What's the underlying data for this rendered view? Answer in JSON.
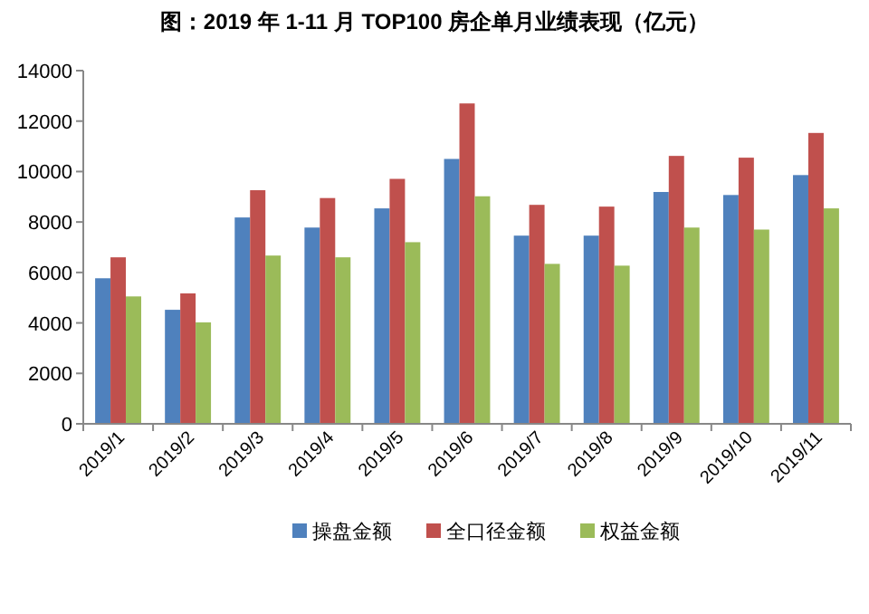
{
  "chart_data": {
    "type": "bar",
    "title": "图：2019 年 1-11 月 TOP100 房企单月业绩表现（亿元）",
    "categories": [
      "2019/1",
      "2019/2",
      "2019/3",
      "2019/4",
      "2019/5",
      "2019/6",
      "2019/7",
      "2019/8",
      "2019/9",
      "2019/10",
      "2019/11"
    ],
    "series": [
      {
        "name": "操盘金额",
        "color": "#4f81bd",
        "values": [
          5770,
          4520,
          8180,
          7780,
          8540,
          10500,
          7460,
          7460,
          9190,
          9070,
          9860
        ]
      },
      {
        "name": "全口径金额",
        "color": "#c0504d",
        "values": [
          6600,
          5170,
          9260,
          8950,
          9710,
          12700,
          8680,
          8610,
          10620,
          10550,
          11530
        ]
      },
      {
        "name": "权益金额",
        "color": "#9bbb59",
        "values": [
          5050,
          4020,
          6670,
          6600,
          7200,
          9020,
          6340,
          6270,
          7780,
          7700,
          8540
        ]
      }
    ],
    "ylim": [
      0,
      14000
    ],
    "yticks": [
      0,
      2000,
      4000,
      6000,
      8000,
      10000,
      12000,
      14000
    ],
    "grid": false,
    "legend": "bottom"
  }
}
